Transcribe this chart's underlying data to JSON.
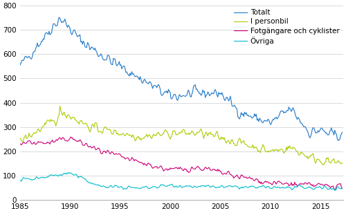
{
  "title": "",
  "xlabel": "",
  "ylabel": "",
  "xlim": [
    1985.0,
    2017.25
  ],
  "ylim": [
    0,
    800
  ],
  "yticks": [
    0,
    100,
    200,
    300,
    400,
    500,
    600,
    700,
    800
  ],
  "xticks": [
    1985,
    1990,
    1995,
    2000,
    2005,
    2010,
    2015
  ],
  "colors": {
    "Totalt": "#1f78c8",
    "I personbil": "#aacc00",
    "Fotgängare och cyklister": "#cc0077",
    "Övriga": "#00bbcc"
  },
  "legend_labels": [
    "Totalt",
    "I personbil",
    "Fotgängare och cyklister",
    "Övriga"
  ],
  "background_color": "#ffffff",
  "grid_color": "#cccccc"
}
